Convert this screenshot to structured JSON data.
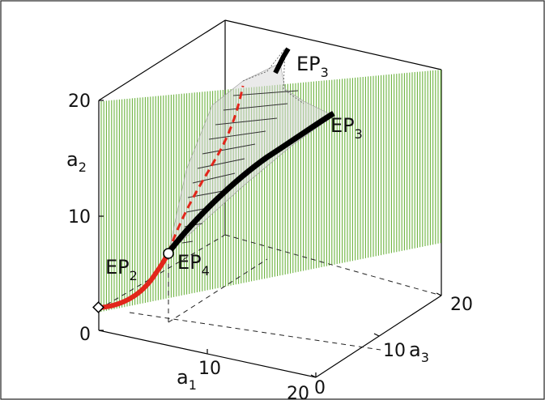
{
  "axes": {
    "a1": {
      "symbol": "a",
      "sub": "1",
      "tick_10": "10",
      "tick_20": "20"
    },
    "a2": {
      "symbol": "a",
      "sub": "2",
      "tick_0": "0",
      "tick_10": "10",
      "tick_20": "20"
    },
    "a3": {
      "symbol": "a",
      "sub": "3",
      "tick_0": "0",
      "tick_10": "10",
      "tick_20": "20"
    }
  },
  "labels": {
    "ep2": {
      "main": "EP",
      "sub": "2"
    },
    "ep3_top": {
      "main": "EP",
      "sub": "3"
    },
    "ep3_right": {
      "main": "EP",
      "sub": "3"
    },
    "ep4": {
      "main": "EP",
      "sub": "4"
    }
  },
  "colors": {
    "plane": "#6cb33f",
    "curve_black": "#000000",
    "curve_red": "#e2261b",
    "surface": "#c8c8c8",
    "frame": "#000000"
  },
  "icons": {
    "ep4_marker": "open-circle",
    "ep2_marker": "open-diamond"
  }
}
